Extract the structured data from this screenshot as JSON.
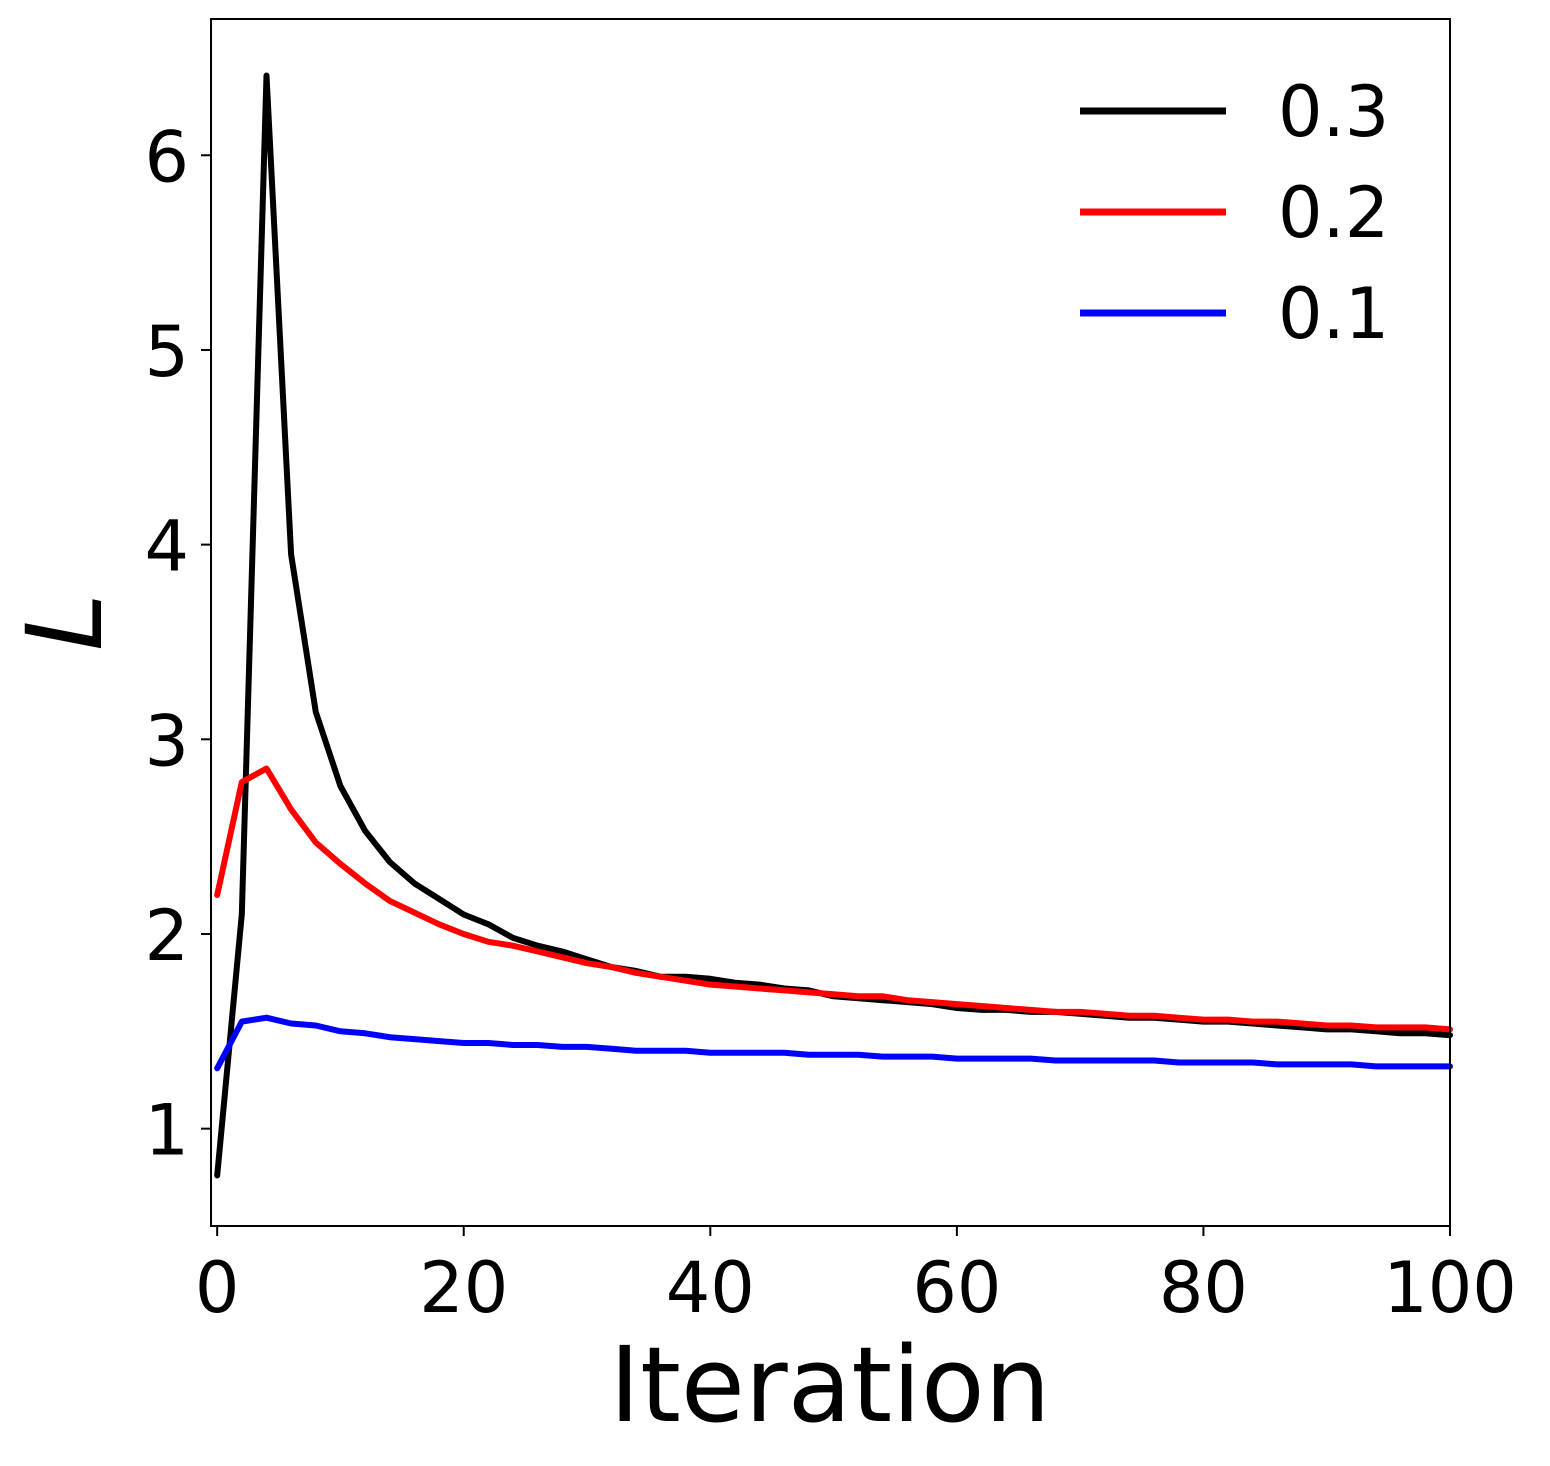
{
  "chart_data": {
    "type": "line",
    "title": "",
    "xlabel": "Iteration",
    "ylabel": "L",
    "xlim": [
      -0.5,
      100
    ],
    "ylim": [
      0.5,
      6.7
    ],
    "xticks": [
      0,
      20,
      40,
      60,
      80,
      100
    ],
    "xtick_labels": [
      "0",
      "20",
      "40",
      "60",
      "80",
      "100"
    ],
    "yticks": [
      1,
      2,
      3,
      4,
      5,
      6
    ],
    "ytick_labels": [
      "1",
      "2",
      "3",
      "4",
      "5",
      "6"
    ],
    "grid": false,
    "legend_position": "top-right",
    "x": [
      0,
      2,
      4,
      6,
      8,
      10,
      12,
      14,
      16,
      18,
      20,
      22,
      24,
      26,
      28,
      30,
      32,
      34,
      36,
      38,
      40,
      42,
      44,
      46,
      48,
      50,
      52,
      54,
      56,
      58,
      60,
      62,
      64,
      66,
      68,
      70,
      72,
      74,
      76,
      78,
      80,
      82,
      84,
      86,
      88,
      90,
      92,
      94,
      96,
      98,
      100
    ],
    "series": [
      {
        "name": "0.3",
        "color": "#000000",
        "values": [
          0.76,
          2.1,
          6.41,
          3.95,
          3.14,
          2.76,
          2.53,
          2.37,
          2.26,
          2.18,
          2.1,
          2.05,
          1.98,
          1.94,
          1.91,
          1.87,
          1.83,
          1.81,
          1.78,
          1.78,
          1.77,
          1.75,
          1.74,
          1.72,
          1.71,
          1.68,
          1.67,
          1.66,
          1.65,
          1.64,
          1.62,
          1.61,
          1.61,
          1.6,
          1.6,
          1.59,
          1.58,
          1.57,
          1.57,
          1.56,
          1.55,
          1.55,
          1.54,
          1.53,
          1.52,
          1.51,
          1.51,
          1.5,
          1.49,
          1.49,
          1.48
        ]
      },
      {
        "name": "0.2",
        "color": "#ff0000",
        "values": [
          2.2,
          2.78,
          2.85,
          2.64,
          2.47,
          2.36,
          2.26,
          2.17,
          2.11,
          2.05,
          2.0,
          1.96,
          1.94,
          1.91,
          1.88,
          1.85,
          1.83,
          1.8,
          1.78,
          1.76,
          1.74,
          1.73,
          1.72,
          1.71,
          1.7,
          1.69,
          1.68,
          1.68,
          1.66,
          1.65,
          1.64,
          1.63,
          1.62,
          1.61,
          1.6,
          1.6,
          1.59,
          1.58,
          1.58,
          1.57,
          1.56,
          1.56,
          1.55,
          1.55,
          1.54,
          1.53,
          1.53,
          1.52,
          1.52,
          1.52,
          1.51
        ]
      },
      {
        "name": "0.1",
        "color": "#0000ff",
        "values": [
          1.31,
          1.55,
          1.57,
          1.54,
          1.53,
          1.5,
          1.49,
          1.47,
          1.46,
          1.45,
          1.44,
          1.44,
          1.43,
          1.43,
          1.42,
          1.42,
          1.41,
          1.4,
          1.4,
          1.4,
          1.39,
          1.39,
          1.39,
          1.39,
          1.38,
          1.38,
          1.38,
          1.37,
          1.37,
          1.37,
          1.36,
          1.36,
          1.36,
          1.36,
          1.35,
          1.35,
          1.35,
          1.35,
          1.35,
          1.34,
          1.34,
          1.34,
          1.34,
          1.33,
          1.33,
          1.33,
          1.33,
          1.32,
          1.32,
          1.32,
          1.32
        ]
      }
    ]
  }
}
